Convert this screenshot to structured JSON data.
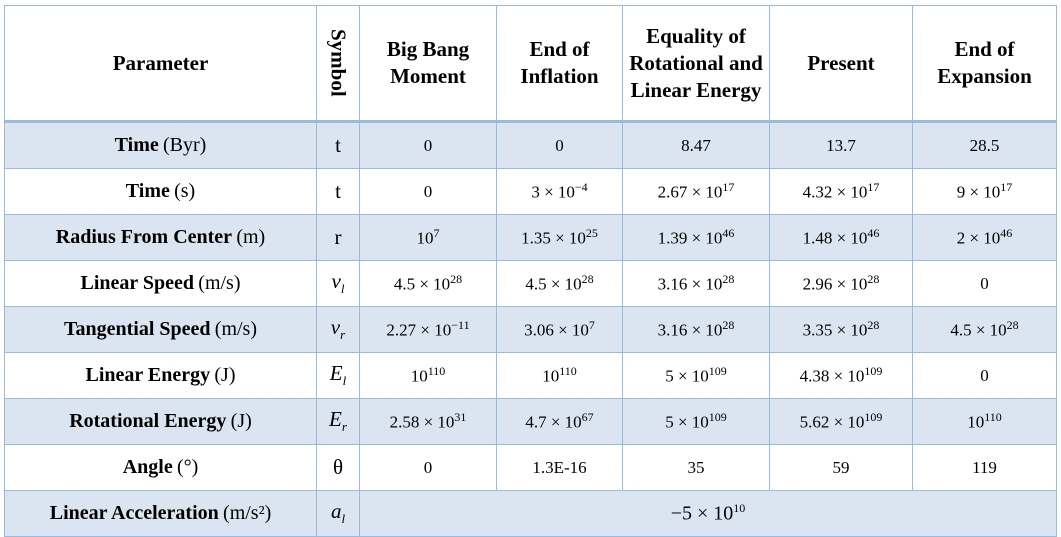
{
  "table": {
    "headers": [
      "Parameter",
      "Symbol",
      "Big Bang Moment",
      "End of Inflation",
      "Equality of Rotational and Linear Energy",
      "Present",
      "End of Expansion"
    ],
    "rows": [
      {
        "name": "Time",
        "unit": "(Byr)",
        "symbol": {
          "main": "t"
        },
        "values": [
          "0",
          "0",
          "8.47",
          "13.7",
          "28.5"
        ]
      },
      {
        "name": "Time",
        "unit": "(s)",
        "symbol": {
          "main": "t"
        },
        "values": [
          "0",
          {
            "base": "3 × 10",
            "sup": "−4"
          },
          {
            "base": "2.67 × 10",
            "sup": "17"
          },
          {
            "base": "4.32 × 10",
            "sup": "17"
          },
          {
            "base": "9 × 10",
            "sup": "17"
          }
        ]
      },
      {
        "name": "Radius From Center",
        "unit": "(m)",
        "symbol": {
          "main": "r"
        },
        "values": [
          {
            "base": "10",
            "sup": "7"
          },
          {
            "base": "1.35 × 10",
            "sup": "25"
          },
          {
            "base": "1.39 × 10",
            "sup": "46"
          },
          {
            "base": "1.48 × 10",
            "sup": "46"
          },
          {
            "base": "2 × 10",
            "sup": "46"
          }
        ]
      },
      {
        "name": "Linear Speed",
        "unit": "(m/s)",
        "symbol": {
          "main": "v",
          "sub": "l"
        },
        "values": [
          {
            "base": "4.5 × 10",
            "sup": "28"
          },
          {
            "base": "4.5 × 10",
            "sup": "28"
          },
          {
            "base": "3.16 × 10",
            "sup": "28"
          },
          {
            "base": "2.96 × 10",
            "sup": "28"
          },
          "0"
        ]
      },
      {
        "name": "Tangential Speed",
        "unit": "(m/s)",
        "symbol": {
          "main": "v",
          "sub": "r"
        },
        "values": [
          {
            "base": "2.27 × 10",
            "sup": "−11"
          },
          {
            "base": "3.06 × 10",
            "sup": "7"
          },
          {
            "base": "3.16 × 10",
            "sup": "28"
          },
          {
            "base": "3.35 × 10",
            "sup": "28"
          },
          {
            "base": "4.5 × 10",
            "sup": "28"
          }
        ]
      },
      {
        "name": "Linear Energy",
        "unit": "(J)",
        "symbol": {
          "main": "E",
          "sub": "l"
        },
        "values": [
          {
            "base": "10",
            "sup": "110"
          },
          {
            "base": "10",
            "sup": "110"
          },
          {
            "base": "5 × 10",
            "sup": "109"
          },
          {
            "base": "4.38 × 10",
            "sup": "109"
          },
          "0"
        ]
      },
      {
        "name": "Rotational Energy",
        "unit": "(J)",
        "symbol": {
          "main": "E",
          "sub": "r"
        },
        "values": [
          {
            "base": "2.58 × 10",
            "sup": "31"
          },
          {
            "base": "4.7 × 10",
            "sup": "67"
          },
          {
            "base": "5 × 10",
            "sup": "109"
          },
          {
            "base": "5.62 × 10",
            "sup": "109"
          },
          {
            "base": "10",
            "sup": "110"
          }
        ]
      },
      {
        "name": "Angle",
        "unit": "(°)",
        "symbol": {
          "main": "θ"
        },
        "values": [
          "0",
          "1.3E-16",
          "35",
          "59",
          "119"
        ]
      },
      {
        "name": "Linear Acceleration",
        "unit": "(m/s²)",
        "symbol": {
          "main": "a",
          "sub": "l"
        },
        "values": [
          {
            "base": "−5 × 10",
            "sup": "10"
          }
        ]
      }
    ]
  }
}
